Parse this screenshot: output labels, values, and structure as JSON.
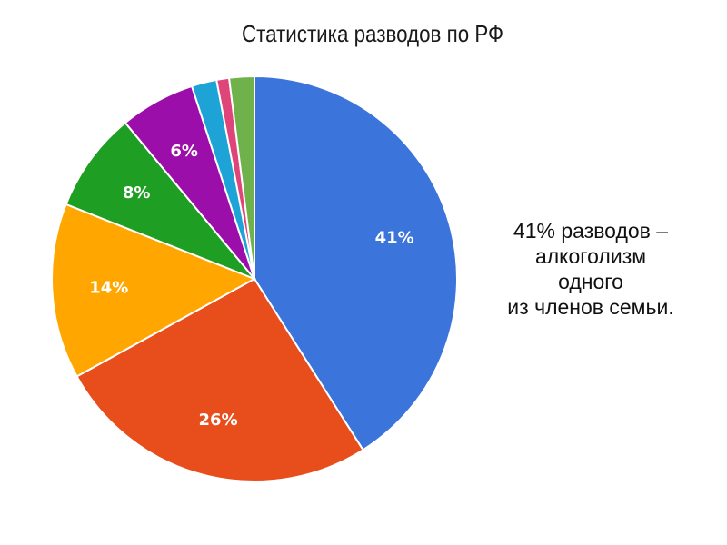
{
  "chart_data": {
    "type": "pie",
    "title": "Статистика разводов по РФ",
    "slices": [
      {
        "label": "41%",
        "value": 41,
        "color": "#3B74DB"
      },
      {
        "label": "26%",
        "value": 26,
        "color": "#E84D1C"
      },
      {
        "label": "14%",
        "value": 14,
        "color": "#FFA700"
      },
      {
        "label": "8%",
        "value": 8,
        "color": "#1E9E22"
      },
      {
        "label": "6%",
        "value": 6,
        "color": "#9C0EA9"
      },
      {
        "label": "",
        "value": 2,
        "color": "#1EA3D6"
      },
      {
        "label": "",
        "value": 1,
        "color": "#E0457A"
      },
      {
        "label": "",
        "value": 2,
        "color": "#6FB24C"
      }
    ],
    "annotation": [
      "41% разводов –",
      "алкоголизм",
      "одного",
      "из членов семьи."
    ]
  }
}
